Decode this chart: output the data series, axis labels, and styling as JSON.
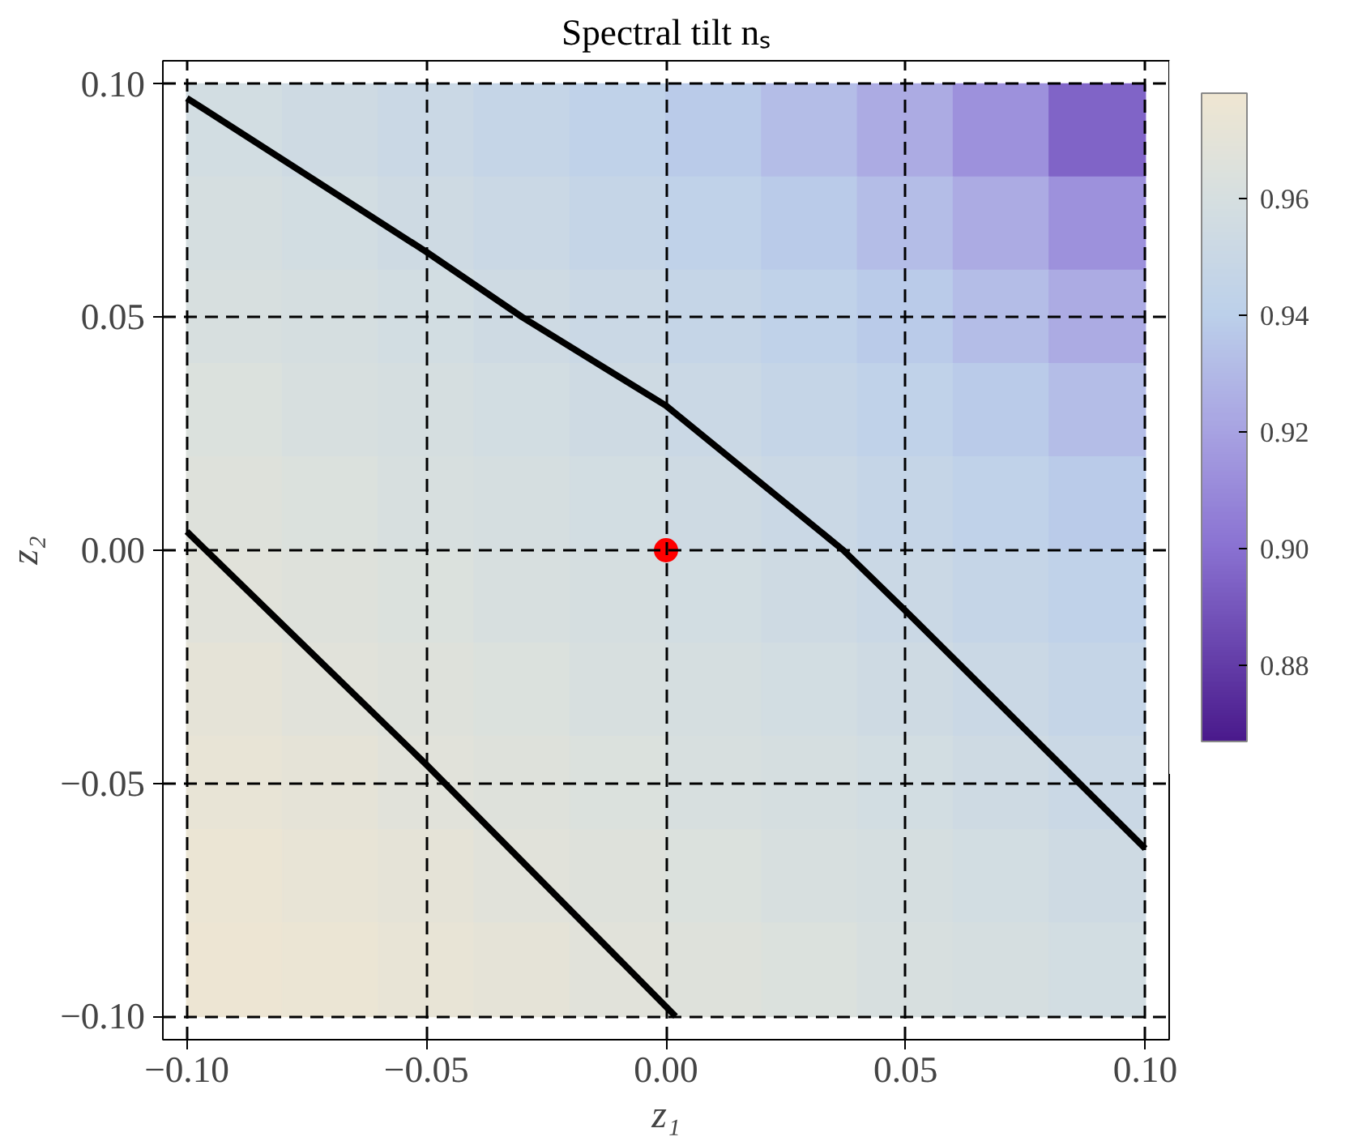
{
  "chart_data": {
    "type": "heatmap",
    "title": "Spectral tilt nₛ",
    "xlabel": "z₁",
    "ylabel": "z₂",
    "x": [
      -0.09,
      -0.07,
      -0.05,
      -0.03,
      -0.01,
      0.01,
      0.03,
      0.05,
      0.07,
      0.09
    ],
    "y": [
      0.09,
      0.07,
      0.05,
      0.03,
      0.01,
      -0.01,
      -0.03,
      -0.05,
      -0.07,
      -0.09
    ],
    "cells": [
      [
        0.957,
        0.954,
        0.951,
        0.947,
        0.943,
        0.938,
        0.932,
        0.924,
        0.913,
        0.895
      ],
      [
        0.959,
        0.957,
        0.954,
        0.951,
        0.947,
        0.943,
        0.938,
        0.932,
        0.924,
        0.913
      ],
      [
        0.961,
        0.959,
        0.957,
        0.954,
        0.951,
        0.947,
        0.943,
        0.938,
        0.932,
        0.924
      ],
      [
        0.964,
        0.961,
        0.959,
        0.957,
        0.954,
        0.951,
        0.947,
        0.943,
        0.938,
        0.932
      ],
      [
        0.966,
        0.964,
        0.961,
        0.959,
        0.957,
        0.954,
        0.951,
        0.947,
        0.943,
        0.938
      ],
      [
        0.968,
        0.966,
        0.964,
        0.961,
        0.959,
        0.957,
        0.954,
        0.951,
        0.947,
        0.943
      ],
      [
        0.971,
        0.968,
        0.966,
        0.964,
        0.961,
        0.959,
        0.957,
        0.954,
        0.951,
        0.947
      ],
      [
        0.973,
        0.971,
        0.968,
        0.966,
        0.964,
        0.961,
        0.959,
        0.957,
        0.954,
        0.951
      ],
      [
        0.975,
        0.973,
        0.971,
        0.968,
        0.966,
        0.964,
        0.961,
        0.959,
        0.957,
        0.954
      ],
      [
        0.976,
        0.975,
        0.973,
        0.971,
        0.968,
        0.966,
        0.964,
        0.961,
        0.959,
        0.957
      ]
    ],
    "clim": [
      0.867,
      0.978
    ],
    "cticks": [
      {
        "value": 0.88,
        "label": "0.88"
      },
      {
        "value": 0.9,
        "label": "0.90"
      },
      {
        "value": 0.92,
        "label": "0.92"
      },
      {
        "value": 0.94,
        "label": "0.94"
      },
      {
        "value": 0.96,
        "label": "0.96"
      }
    ],
    "xlim": [
      -0.105,
      0.105
    ],
    "ylim": [
      -0.105,
      0.105
    ],
    "xticks": [
      {
        "value": -0.1,
        "label": "−0.10"
      },
      {
        "value": -0.05,
        "label": "−0.05"
      },
      {
        "value": 0,
        "label": "0.00"
      },
      {
        "value": 0.05,
        "label": "0.05"
      },
      {
        "value": 0.1,
        "label": "0.10"
      }
    ],
    "yticks": [
      {
        "value": -0.1,
        "label": "−0.10"
      },
      {
        "value": -0.05,
        "label": "−0.05"
      },
      {
        "value": 0,
        "label": "0.00"
      },
      {
        "value": 0.05,
        "label": "0.05"
      },
      {
        "value": 0.1,
        "label": "0.10"
      }
    ],
    "series": [
      {
        "type": "line",
        "color": "#000000",
        "x": [
          -0.1,
          -0.05,
          -0.03,
          0,
          0.037,
          0.05,
          0.1
        ],
        "values": [
          0.097,
          0.064,
          0.05,
          0.031,
          0,
          -0.013,
          -0.064
        ]
      },
      {
        "type": "line",
        "color": "#000000",
        "x": [
          -0.1,
          -0.05,
          0.002
        ],
        "values": [
          0.004,
          -0.046,
          -0.1
        ]
      },
      {
        "type": "scatter",
        "color": "#ff0000",
        "marker": "circle",
        "x": [
          0
        ],
        "values": [
          0
        ]
      }
    ],
    "grid": true
  }
}
